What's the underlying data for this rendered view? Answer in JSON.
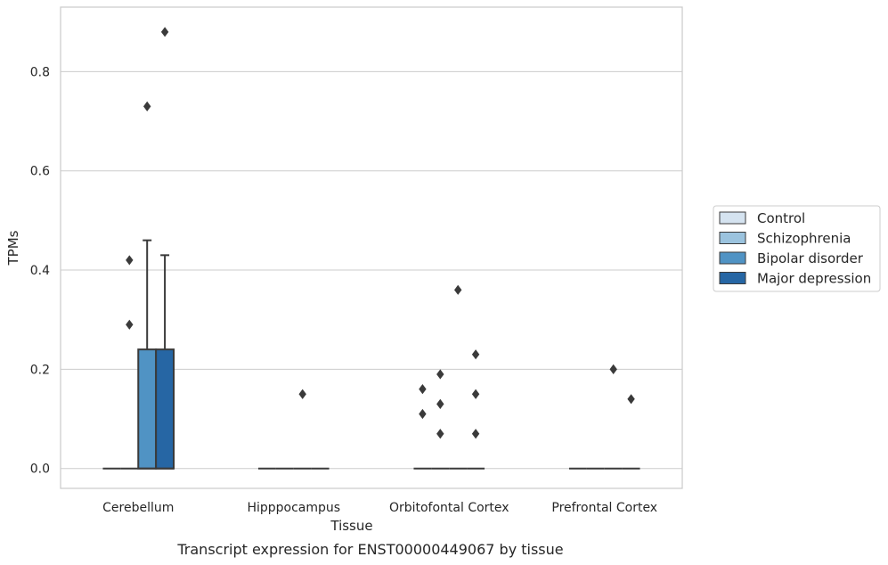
{
  "chart_data": {
    "type": "box",
    "title": "",
    "caption": "Transcript expression for ENST00000449067 by tissue",
    "xlabel": "Tissue",
    "ylabel": "TPMs",
    "ylim": [
      -0.04,
      0.93
    ],
    "yticks": [
      0.0,
      0.2,
      0.4,
      0.6,
      0.8
    ],
    "ytick_labels": [
      "0.0",
      "0.2",
      "0.4",
      "0.6",
      "0.8"
    ],
    "grid": "horizontal",
    "legend_position": "right",
    "categories": [
      "Cerebellum",
      "Hipppocampus",
      "Orbitofontal Cortex",
      "Prefrontal Cortex"
    ],
    "series": [
      {
        "name": "Control",
        "color": "#d5e3f0",
        "boxes": [
          {
            "q1": 0,
            "median": 0,
            "q3": 0,
            "whisker_low": 0,
            "whisker_high": 0,
            "outliers": []
          },
          {
            "q1": 0,
            "median": 0,
            "q3": 0,
            "whisker_low": 0,
            "whisker_high": 0,
            "outliers": []
          },
          {
            "q1": 0,
            "median": 0,
            "q3": 0,
            "whisker_low": 0,
            "whisker_high": 0,
            "outliers": [
              0.16,
              0.11
            ]
          },
          {
            "q1": 0,
            "median": 0,
            "q3": 0,
            "whisker_low": 0,
            "whisker_high": 0,
            "outliers": []
          }
        ]
      },
      {
        "name": "Schizophrenia",
        "color": "#9bc3de",
        "boxes": [
          {
            "q1": 0,
            "median": 0,
            "q3": 0,
            "whisker_low": 0,
            "whisker_high": 0,
            "outliers": [
              0.42,
              0.29
            ]
          },
          {
            "q1": 0,
            "median": 0,
            "q3": 0,
            "whisker_low": 0,
            "whisker_high": 0,
            "outliers": []
          },
          {
            "q1": 0,
            "median": 0,
            "q3": 0,
            "whisker_low": 0,
            "whisker_high": 0,
            "outliers": [
              0.19,
              0.13,
              0.07
            ]
          },
          {
            "q1": 0,
            "median": 0,
            "q3": 0,
            "whisker_low": 0,
            "whisker_high": 0,
            "outliers": []
          }
        ]
      },
      {
        "name": "Bipolar disorder",
        "color": "#5093c4",
        "boxes": [
          {
            "q1": 0,
            "median": 0,
            "q3": 0.24,
            "whisker_low": 0,
            "whisker_high": 0.46,
            "outliers": [
              0.73
            ]
          },
          {
            "q1": 0,
            "median": 0,
            "q3": 0,
            "whisker_low": 0,
            "whisker_high": 0,
            "outliers": [
              0.15
            ]
          },
          {
            "q1": 0,
            "median": 0,
            "q3": 0,
            "whisker_low": 0,
            "whisker_high": 0,
            "outliers": [
              0.36
            ]
          },
          {
            "q1": 0,
            "median": 0,
            "q3": 0,
            "whisker_low": 0,
            "whisker_high": 0,
            "outliers": [
              0.2
            ]
          }
        ]
      },
      {
        "name": "Major depression",
        "color": "#2666a4",
        "boxes": [
          {
            "q1": 0,
            "median": 0,
            "q3": 0.24,
            "whisker_low": 0,
            "whisker_high": 0.43,
            "outliers": [
              0.88
            ]
          },
          {
            "q1": 0,
            "median": 0,
            "q3": 0,
            "whisker_low": 0,
            "whisker_high": 0,
            "outliers": []
          },
          {
            "q1": 0,
            "median": 0,
            "q3": 0,
            "whisker_low": 0,
            "whisker_high": 0,
            "outliers": [
              0.23,
              0.15,
              0.07
            ]
          },
          {
            "q1": 0,
            "median": 0,
            "q3": 0,
            "whisker_low": 0,
            "whisker_high": 0,
            "outliers": [
              0.14
            ]
          }
        ]
      }
    ]
  }
}
